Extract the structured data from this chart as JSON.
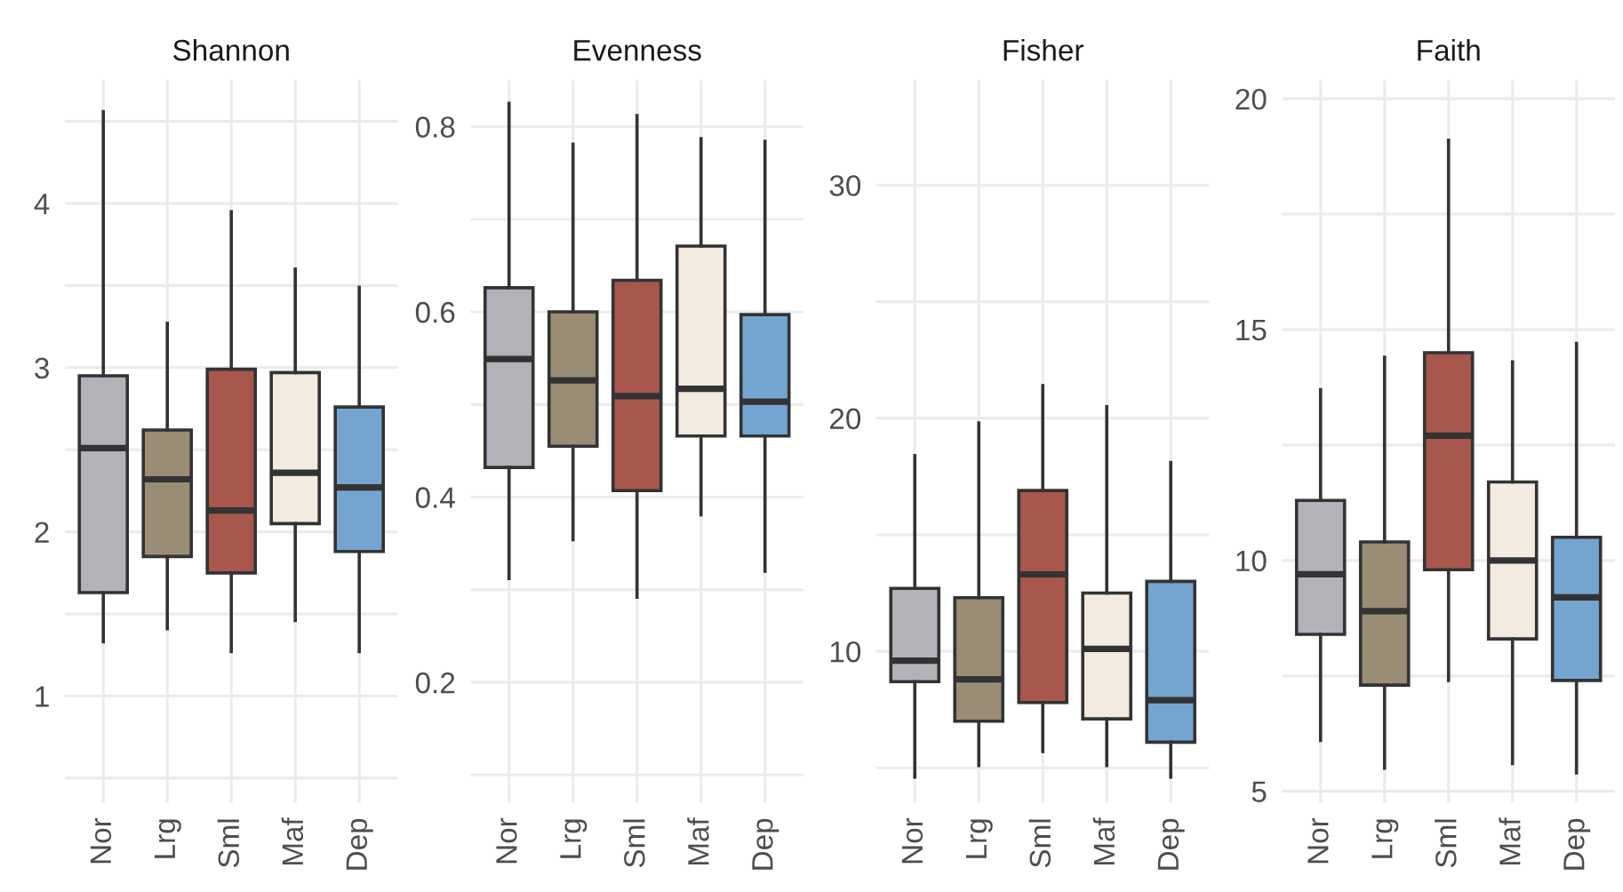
{
  "chart_data": [
    {
      "type": "box",
      "title": "Shannon",
      "categories": [
        "Nor",
        "Lrg",
        "Sml",
        "Maf",
        "Dep"
      ],
      "colors": [
        "#b1b3b8",
        "#9a8d75",
        "#a8574c",
        "#f3ebdf",
        "#74a5d1"
      ],
      "grid": true,
      "ylim": [
        0.35,
        4.75
      ],
      "yticks": [
        {
          "value": 0.5,
          "label": null
        },
        1,
        {
          "value": 1.5,
          "label": null
        },
        2,
        {
          "value": 2.5,
          "label": null
        },
        3,
        {
          "value": 3.5,
          "label": null
        },
        4,
        {
          "value": 4.5,
          "label": null
        }
      ],
      "boxes": [
        {
          "low": 1.33,
          "q1": 1.63,
          "median": 2.51,
          "q3": 2.95,
          "high": 4.56
        },
        {
          "low": 1.41,
          "q1": 1.85,
          "median": 2.32,
          "q3": 2.62,
          "high": 3.27
        },
        {
          "low": 1.27,
          "q1": 1.75,
          "median": 2.13,
          "q3": 2.99,
          "high": 3.95
        },
        {
          "low": 1.46,
          "q1": 2.05,
          "median": 2.36,
          "q3": 2.97,
          "high": 3.6
        },
        {
          "low": 1.27,
          "q1": 1.88,
          "median": 2.27,
          "q3": 2.76,
          "high": 3.49
        }
      ]
    },
    {
      "type": "box",
      "title": "Evenness",
      "categories": [
        "Nor",
        "Lrg",
        "Sml",
        "Maf",
        "Dep"
      ],
      "colors": [
        "#b1b3b8",
        "#9a8d75",
        "#a8574c",
        "#f3ebdf",
        "#74a5d1"
      ],
      "grid": true,
      "ylim": [
        0.07,
        0.85
      ],
      "yticks": [
        {
          "value": 0.1,
          "label": null
        },
        {
          "value": 0.2,
          "label": "0.2"
        },
        {
          "value": 0.3,
          "label": null
        },
        {
          "value": 0.4,
          "label": "0.4"
        },
        {
          "value": 0.5,
          "label": null
        },
        {
          "value": 0.6,
          "label": "0.6"
        },
        {
          "value": 0.7,
          "label": null
        },
        {
          "value": 0.8,
          "label": "0.8"
        }
      ],
      "boxes": [
        {
          "low": 0.312,
          "q1": 0.432,
          "median": 0.549,
          "q3": 0.626,
          "high": 0.825
        },
        {
          "low": 0.354,
          "q1": 0.455,
          "median": 0.526,
          "q3": 0.6,
          "high": 0.781
        },
        {
          "low": 0.292,
          "q1": 0.407,
          "median": 0.509,
          "q3": 0.634,
          "high": 0.812
        },
        {
          "low": 0.381,
          "q1": 0.466,
          "median": 0.517,
          "q3": 0.671,
          "high": 0.787
        },
        {
          "low": 0.32,
          "q1": 0.466,
          "median": 0.503,
          "q3": 0.597,
          "high": 0.784
        }
      ]
    },
    {
      "type": "box",
      "title": "Fisher",
      "categories": [
        "Nor",
        "Lrg",
        "Sml",
        "Maf",
        "Dep"
      ],
      "colors": [
        "#b1b3b8",
        "#9a8d75",
        "#a8574c",
        "#f3ebdf",
        "#74a5d1"
      ],
      "grid": true,
      "ylim": [
        3.5,
        34.5
      ],
      "yticks": [
        {
          "value": 5,
          "label": null
        },
        10,
        {
          "value": 15,
          "label": null
        },
        20,
        {
          "value": 25,
          "label": null
        },
        30
      ],
      "boxes": [
        {
          "low": 4.6,
          "q1": 8.7,
          "median": 9.6,
          "q3": 12.7,
          "high": 18.4
        },
        {
          "low": 5.1,
          "q1": 7.0,
          "median": 8.8,
          "q3": 12.3,
          "high": 19.8
        },
        {
          "low": 5.7,
          "q1": 7.8,
          "median": 13.3,
          "q3": 16.9,
          "high": 21.4
        },
        {
          "low": 5.1,
          "q1": 7.1,
          "median": 10.1,
          "q3": 12.5,
          "high": 20.5
        },
        {
          "low": 4.6,
          "q1": 6.1,
          "median": 7.9,
          "q3": 13.0,
          "high": 18.1
        }
      ]
    },
    {
      "type": "box",
      "title": "Faith",
      "categories": [
        "Nor",
        "Lrg",
        "Sml",
        "Maf",
        "Dep"
      ],
      "colors": [
        "#b1b3b8",
        "#9a8d75",
        "#a8574c",
        "#f3ebdf",
        "#74a5d1"
      ],
      "grid": true,
      "ylim": [
        4.75,
        20.4
      ],
      "yticks": [
        5,
        {
          "value": 7.5,
          "label": null
        },
        10,
        {
          "value": 12.5,
          "label": null
        },
        15,
        {
          "value": 17.5,
          "label": null
        },
        20
      ],
      "boxes": [
        {
          "low": 6.1,
          "q1": 8.4,
          "median": 9.7,
          "q3": 11.3,
          "high": 13.7
        },
        {
          "low": 5.5,
          "q1": 7.3,
          "median": 8.9,
          "q3": 10.4,
          "high": 14.4
        },
        {
          "low": 7.4,
          "q1": 9.8,
          "median": 12.7,
          "q3": 14.5,
          "high": 19.1
        },
        {
          "low": 5.6,
          "q1": 8.3,
          "median": 10.0,
          "q3": 11.7,
          "high": 14.3
        },
        {
          "low": 5.4,
          "q1": 7.4,
          "median": 9.2,
          "q3": 10.5,
          "high": 14.7
        }
      ]
    }
  ]
}
